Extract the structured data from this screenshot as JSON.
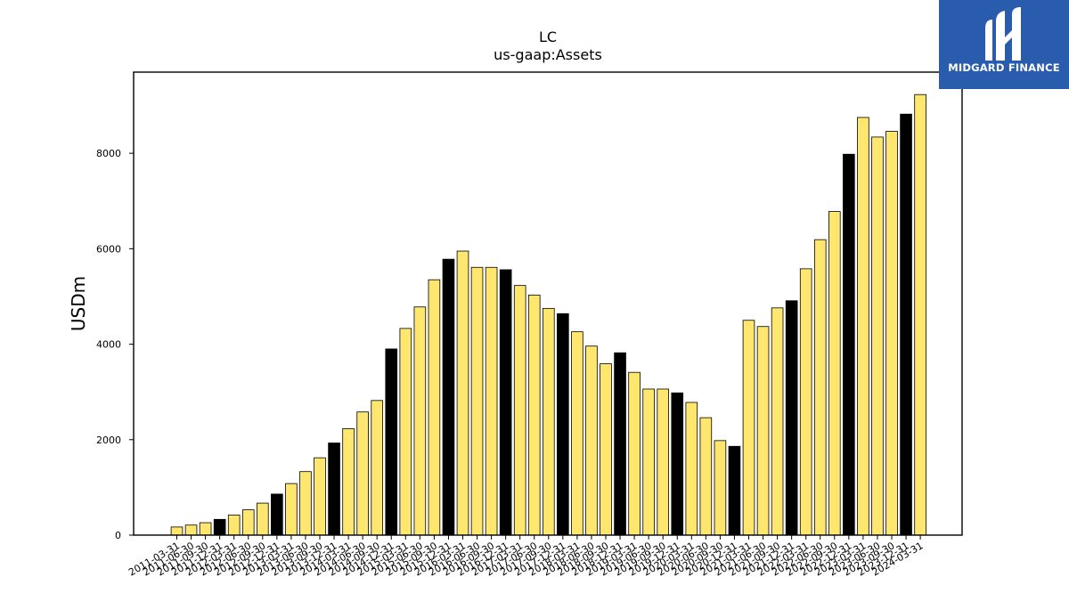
{
  "brand": {
    "name": "MIDGARD FINANCE",
    "bg": "#2a5cad"
  },
  "chart_data": {
    "type": "bar",
    "title": "LC",
    "subtitle": "us-gaap:Assets",
    "xlabel": "",
    "ylabel": "USDm",
    "ylim": [
      0,
      9700
    ],
    "yticks": [
      0,
      2000,
      4000,
      6000,
      8000
    ],
    "grid": false,
    "colors": {
      "quarter": "#ffe66e",
      "year_end": "#000000",
      "edge": "#000000"
    },
    "categories": [
      "2011-03-31",
      "2011-06-30",
      "2011-09-30",
      "2011-12-31",
      "2012-03-31",
      "2012-06-30",
      "2012-09-30",
      "2012-12-31",
      "2013-03-31",
      "2013-06-30",
      "2013-09-30",
      "2013-12-31",
      "2014-03-31",
      "2014-06-30",
      "2014-09-30",
      "2014-12-31",
      "2015-03-31",
      "2015-06-30",
      "2015-09-30",
      "2015-12-31",
      "2016-03-31",
      "2016-06-30",
      "2016-09-30",
      "2016-12-31",
      "2017-03-31",
      "2017-06-30",
      "2017-09-30",
      "2017-12-31",
      "2018-03-31",
      "2018-06-30",
      "2018-09-30",
      "2018-12-31",
      "2019-03-31",
      "2019-06-30",
      "2019-09-30",
      "2019-12-31",
      "2020-03-31",
      "2020-06-30",
      "2020-09-30",
      "2020-12-31",
      "2021-03-31",
      "2021-06-30",
      "2021-09-30",
      "2021-12-31",
      "2022-03-31",
      "2022-06-30",
      "2022-09-30",
      "2022-12-31",
      "2023-03-31",
      "2023-06-30",
      "2023-09-30",
      "2023-12-31",
      "2024-03-31"
    ],
    "values": [
      170,
      210,
      260,
      330,
      420,
      530,
      670,
      860,
      1080,
      1330,
      1620,
      1930,
      2230,
      2580,
      2820,
      3900,
      4330,
      4780,
      5350,
      5780,
      5950,
      5610,
      5610,
      5560,
      5230,
      5030,
      4750,
      4640,
      4260,
      3960,
      3590,
      3820,
      3410,
      3060,
      3060,
      2980,
      2780,
      2460,
      1980,
      1860,
      4500,
      4370,
      4760,
      4910,
      5580,
      6190,
      6780,
      7980,
      8750,
      8340,
      8460,
      8820,
      9230
    ],
    "year_end_highlight": true
  }
}
